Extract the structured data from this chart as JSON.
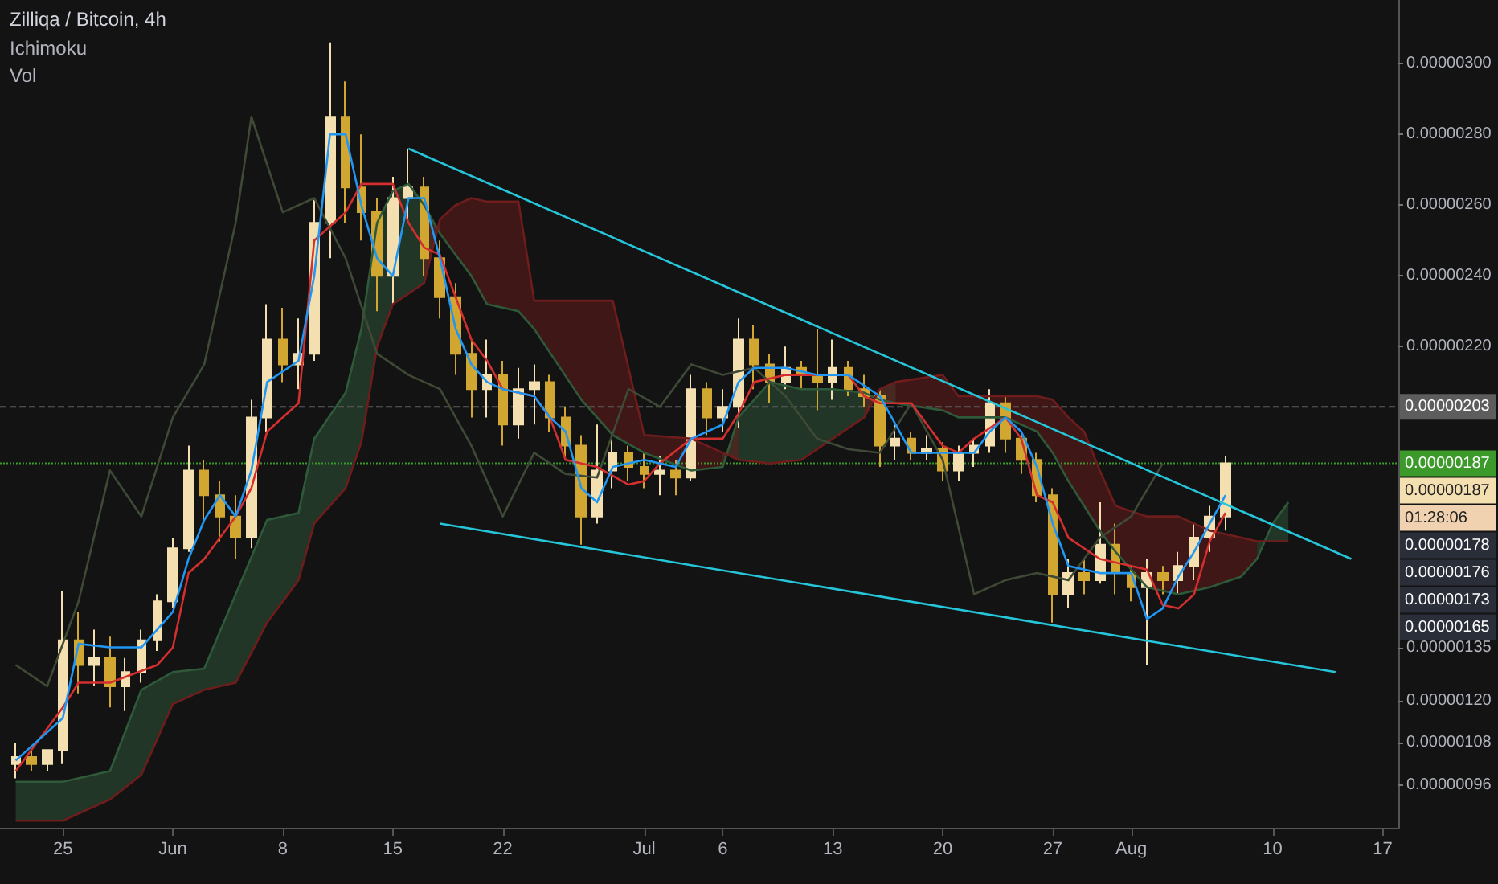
{
  "chart_data": {
    "type": "candlestick",
    "title": "Zilliqa / Bitcoin, 4h",
    "annotations": [
      "Ichimoku",
      "Vol",
      "01:28:06",
      "0.00000178",
      "0.00000176",
      "0.00000173",
      "0.00000165"
    ],
    "value_labels": [
      null,
      null,
      null,
      null,
      null,
      null,
      null,
      null,
      null,
      null,
      null,
      null,
      null,
      null,
      null,
      null,
      null,
      null,
      null,
      null,
      null,
      null,
      null,
      null,
      null,
      null,
      null,
      null,
      null,
      null,
      null,
      null,
      null,
      null,
      null,
      null,
      null,
      null,
      null,
      null,
      null,
      null,
      null,
      null,
      null,
      null,
      null,
      null,
      null,
      null,
      null,
      null,
      null,
      null,
      null,
      null,
      null,
      null,
      null,
      null,
      null,
      null,
      null,
      null,
      null,
      null,
      null,
      null,
      null,
      null,
      null,
      null,
      null,
      null,
      null,
      null,
      null,
      "0.00000187"
    ],
    "x": [
      "--05-22",
      "--05-23",
      "--05-24",
      "--05-25",
      "--05-26",
      "--05-27",
      "--05-28",
      "--05-29",
      "--05-30",
      "--05-31",
      "--06-01",
      "--06-02",
      "--06-03",
      "--06-04",
      "--06-05",
      "--06-06",
      "--06-07",
      "--06-08",
      "--06-09",
      "--06-10",
      "--06-11",
      "--06-12",
      "--06-13",
      "--06-14",
      "--06-15",
      "--06-16",
      "--06-17",
      "--06-18",
      "--06-19",
      "--06-20",
      "--06-21",
      "--06-22",
      "--06-23",
      "--06-24",
      "--06-25",
      "--06-26",
      "--06-27",
      "--06-28",
      "--06-29",
      "--06-30",
      "--07-01",
      "--07-02",
      "--07-03",
      "--07-04",
      "--07-05",
      "--07-06",
      "--07-07",
      "--07-08",
      "--07-09",
      "--07-10",
      "--07-11",
      "--07-12",
      "--07-13",
      "--07-14",
      "--07-15",
      "--07-16",
      "--07-17",
      "--07-18",
      "--07-19",
      "--07-20",
      "--07-21",
      "--07-22",
      "--07-23",
      "--07-24",
      "--07-25",
      "--07-26",
      "--07-27",
      "--07-28",
      "--07-29",
      "--07-30",
      "--07-31",
      "--08-01",
      "--08-02",
      "--08-03",
      "--08-04",
      "--08-05",
      "--08-06",
      "--08-07"
    ],
    "ohlc": [
      [
        1.02e-06,
        1.08e-06,
        9.8e-07,
        1.04e-06
      ],
      [
        1.04e-06,
        1.06e-06,
        1e-06,
        1.02e-06
      ],
      [
        1.02e-06,
        1.06e-06,
        1e-06,
        1.06e-06
      ],
      [
        1.06e-06,
        1.51e-06,
        1.02e-06,
        1.37e-06
      ],
      [
        1.37e-06,
        1.45e-06,
        1.22e-06,
        1.3e-06
      ],
      [
        1.3e-06,
        1.4e-06,
        1.24e-06,
        1.32e-06
      ],
      [
        1.32e-06,
        1.38e-06,
        1.18e-06,
        1.24e-06
      ],
      [
        1.24e-06,
        1.32e-06,
        1.17e-06,
        1.28e-06
      ],
      [
        1.28e-06,
        1.4e-06,
        1.25e-06,
        1.37e-06
      ],
      [
        1.37e-06,
        1.5e-06,
        1.34e-06,
        1.48e-06
      ],
      [
        1.48e-06,
        1.66e-06,
        1.46e-06,
        1.63e-06
      ],
      [
        1.63e-06,
        1.92e-06,
        1.62e-06,
        1.85e-06
      ],
      [
        1.85e-06,
        1.88e-06,
        1.7e-06,
        1.78e-06
      ],
      [
        1.78e-06,
        1.82e-06,
        1.65e-06,
        1.72e-06
      ],
      [
        1.72e-06,
        1.78e-06,
        1.6e-06,
        1.66e-06
      ],
      [
        1.66e-06,
        2.05e-06,
        1.63e-06,
        2e-06
      ],
      [
        2e-06,
        2.32e-06,
        1.96e-06,
        2.22e-06
      ],
      [
        2.22e-06,
        2.31e-06,
        2.1e-06,
        2.15e-06
      ],
      [
        2.15e-06,
        2.28e-06,
        2.08e-06,
        2.18e-06
      ],
      [
        2.18e-06,
        2.62e-06,
        2.16e-06,
        2.55e-06
      ],
      [
        2.55e-06,
        3.06e-06,
        2.45e-06,
        2.85e-06
      ],
      [
        2.85e-06,
        2.95e-06,
        2.55e-06,
        2.65e-06
      ],
      [
        2.65e-06,
        2.8e-06,
        2.5e-06,
        2.58e-06
      ],
      [
        2.58e-06,
        2.62e-06,
        2.3e-06,
        2.4e-06
      ],
      [
        2.4e-06,
        2.68e-06,
        2.32e-06,
        2.62e-06
      ],
      [
        2.62e-06,
        2.76e-06,
        2.55e-06,
        2.65e-06
      ],
      [
        2.65e-06,
        2.68e-06,
        2.4e-06,
        2.45e-06
      ],
      [
        2.45e-06,
        2.5e-06,
        2.28e-06,
        2.34e-06
      ],
      [
        2.34e-06,
        2.38e-06,
        2.12e-06,
        2.18e-06
      ],
      [
        2.18e-06,
        2.22e-06,
        2e-06,
        2.08e-06
      ],
      [
        2.08e-06,
        2.22e-06,
        2e-06,
        2.12e-06
      ],
      [
        2.12e-06,
        2.16e-06,
        1.92e-06,
        1.98e-06
      ],
      [
        1.98e-06,
        2.14e-06,
        1.94e-06,
        2.08e-06
      ],
      [
        2.08e-06,
        2.15e-06,
        1.98e-06,
        2.1e-06
      ],
      [
        2.1e-06,
        2.12e-06,
        1.96e-06,
        2e-06
      ],
      [
        2e-06,
        2.03e-06,
        1.88e-06,
        1.92e-06
      ],
      [
        1.92e-06,
        1.95e-06,
        1.64e-06,
        1.72e-06
      ],
      [
        1.72e-06,
        1.98e-06,
        1.7e-06,
        1.85e-06
      ],
      [
        1.85e-06,
        1.95e-06,
        1.8e-06,
        1.9e-06
      ],
      [
        1.9e-06,
        1.92e-06,
        1.82e-06,
        1.86e-06
      ],
      [
        1.86e-06,
        1.9e-06,
        1.8e-06,
        1.84e-06
      ],
      [
        1.84e-06,
        1.89e-06,
        1.78e-06,
        1.85e-06
      ],
      [
        1.85e-06,
        1.88e-06,
        1.78e-06,
        1.83e-06
      ],
      [
        1.83e-06,
        2.12e-06,
        1.82e-06,
        2.08e-06
      ],
      [
        2.08e-06,
        2.1e-06,
        1.95e-06,
        2e-06
      ],
      [
        2e-06,
        2.08e-06,
        1.96e-06,
        2.03e-06
      ],
      [
        2.03e-06,
        2.28e-06,
        1.97e-06,
        2.22e-06
      ],
      [
        2.22e-06,
        2.26e-06,
        2.08e-06,
        2.15e-06
      ],
      [
        2.15e-06,
        2.18e-06,
        2.04e-06,
        2.1e-06
      ],
      [
        2.1e-06,
        2.2e-06,
        2.08e-06,
        2.14e-06
      ],
      [
        2.14e-06,
        2.16e-06,
        2.08e-06,
        2.12e-06
      ],
      [
        2.12e-06,
        2.25e-06,
        2.02e-06,
        2.1e-06
      ],
      [
        2.1e-06,
        2.22e-06,
        2.05e-06,
        2.14e-06
      ],
      [
        2.14e-06,
        2.16e-06,
        2.06e-06,
        2.08e-06
      ],
      [
        2.08e-06,
        2.12e-06,
        2.03e-06,
        2.06e-06
      ],
      [
        2.06e-06,
        2.08e-06,
        1.86e-06,
        1.92e-06
      ],
      [
        1.92e-06,
        1.98e-06,
        1.88e-06,
        1.94e-06
      ],
      [
        1.94e-06,
        1.96e-06,
        1.88e-06,
        1.9e-06
      ],
      [
        1.9e-06,
        1.95e-06,
        1.88e-06,
        1.91e-06
      ],
      [
        1.91e-06,
        1.93e-06,
        1.82e-06,
        1.85e-06
      ],
      [
        1.85e-06,
        1.92e-06,
        1.82e-06,
        1.9e-06
      ],
      [
        1.9e-06,
        1.94e-06,
        1.86e-06,
        1.92e-06
      ],
      [
        1.92e-06,
        2.08e-06,
        1.9e-06,
        2.04e-06
      ],
      [
        2.04e-06,
        2.06e-06,
        1.9e-06,
        1.94e-06
      ],
      [
        1.94e-06,
        1.96e-06,
        1.84e-06,
        1.88e-06
      ],
      [
        1.88e-06,
        1.9e-06,
        1.76e-06,
        1.78e-06
      ],
      [
        1.78e-06,
        1.8e-06,
        1.42e-06,
        1.5e-06
      ],
      [
        1.5e-06,
        1.6e-06,
        1.46e-06,
        1.56e-06
      ],
      [
        1.56e-06,
        1.6e-06,
        1.5e-06,
        1.54e-06
      ],
      [
        1.54e-06,
        1.76e-06,
        1.53e-06,
        1.64e-06
      ],
      [
        1.64e-06,
        1.7e-06,
        1.5e-06,
        1.56e-06
      ],
      [
        1.56e-06,
        1.58e-06,
        1.48e-06,
        1.52e-06
      ],
      [
        1.52e-06,
        1.6e-06,
        1.3e-06,
        1.56e-06
      ],
      [
        1.56e-06,
        1.58e-06,
        1.5e-06,
        1.54e-06
      ],
      [
        1.54e-06,
        1.62e-06,
        1.5e-06,
        1.58e-06
      ],
      [
        1.58e-06,
        1.7e-06,
        1.54e-06,
        1.66e-06
      ],
      [
        1.66e-06,
        1.75e-06,
        1.62e-06,
        1.72e-06
      ],
      [
        1.72e-06,
        1.89e-06,
        1.68e-06,
        1.87e-06
      ]
    ],
    "colors": [
      "#f4dfb0",
      "#d1a631",
      "#f4dfb0",
      "#f4dfb0",
      "#d1a631",
      "#f4dfb0",
      "#d1a631",
      "#f4dfb0",
      "#f4dfb0",
      "#f4dfb0",
      "#f4dfb0",
      "#f4dfb0",
      "#d1a631",
      "#d1a631",
      "#d1a631",
      "#f4dfb0",
      "#f4dfb0",
      "#d1a631",
      "#f4dfb0",
      "#f4dfb0",
      "#f4dfb0",
      "#d1a631",
      "#d1a631",
      "#d1a631",
      "#f4dfb0",
      "#f4dfb0",
      "#d1a631",
      "#d1a631",
      "#d1a631",
      "#d1a631",
      "#f4dfb0",
      "#d1a631",
      "#f4dfb0",
      "#f4dfb0",
      "#d1a631",
      "#d1a631",
      "#d1a631",
      "#f4dfb0",
      "#f4dfb0",
      "#d1a631",
      "#d1a631",
      "#f4dfb0",
      "#d1a631",
      "#f4dfb0",
      "#d1a631",
      "#f4dfb0",
      "#f4dfb0",
      "#d1a631",
      "#d1a631",
      "#f4dfb0",
      "#d1a631",
      "#d1a631",
      "#f4dfb0",
      "#d1a631",
      "#d1a631",
      "#d1a631",
      "#f4dfb0",
      "#d1a631",
      "#f4dfb0",
      "#d1a631",
      "#f4dfb0",
      "#f4dfb0",
      "#f4dfb0",
      "#d1a631",
      "#d1a631",
      "#d1a631",
      "#d1a631",
      "#f4dfb0",
      "#d1a631",
      "#f4dfb0",
      "#d1a631",
      "#d1a631",
      "#f4dfb0",
      "#d1a631",
      "#f4dfb0",
      "#f4dfb0",
      "#f4dfb0",
      "#f4dfb0"
    ],
    "series": [
      {
        "type": "line",
        "color": "#2f5a3a",
        "values": [
          9.7e-07,
          9.7e-07,
          1e-06,
          1.23e-06,
          1.28e-06,
          1.29e-06,
          1.5e-06,
          1.71e-06,
          1.73e-06,
          1.94e-06,
          2.07e-06,
          2.25e-06,
          2.55e-06,
          2.64e-06,
          2.66e-06,
          2.6e-06,
          2.52e-06,
          2.46e-06,
          2.4e-06,
          2.32e-06,
          2.3e-06,
          2.25e-06,
          2.05e-06,
          1.95e-06,
          1.9e-06,
          1.85e-06,
          1.86e-06,
          2e-06,
          2.1e-06,
          2.08e-06,
          2.08e-06,
          2.07e-06,
          2.05e-06,
          2.04e-06,
          2.02e-06,
          2e-06,
          2e-06,
          1.96e-06,
          1.9e-06,
          1.82e-06,
          1.75e-06,
          1.68e-06,
          1.62e-06,
          1.52e-06,
          1.5e-06,
          1.52e-06,
          1.55e-06,
          1.6e-06,
          1.7e-06,
          1.76e-06
        ],
        "x": [
          "--05-22",
          "--05-25",
          "--05-28",
          "--05-30",
          "--06-01",
          "--06-03",
          "--06-05",
          "--06-07",
          "--06-09",
          "--06-10",
          "--06-12",
          "--06-13",
          "--06-14",
          "--06-15",
          "--06-16",
          "--06-17",
          "--06-18",
          "--06-19",
          "--06-20",
          "--06-21",
          "--06-23",
          "--06-24",
          "--06-27",
          "--06-29",
          "--07-01",
          "--07-04",
          "--07-06",
          "--07-07",
          "--07-09",
          "--07-11",
          "--07-13",
          "--07-15",
          "--07-16",
          "--07-17",
          "--07-20",
          "--07-21",
          "--07-24",
          "--07-26",
          "--07-27",
          "--07-28",
          "--07-29",
          "--07-30",
          "--07-31",
          "--08-02",
          "--08-04",
          "--08-06",
          "--08-08",
          "--08-09",
          "--08-10",
          "--08-11"
        ],
        "lower": [
          8.6e-07,
          8.6e-07,
          9.2e-07,
          9.9e-07,
          1.19e-06,
          1.23e-06,
          1.25e-06,
          1.42e-06,
          1.54e-06,
          1.7e-06,
          1.8e-06,
          1.93e-06,
          2.2e-06,
          2.32e-06,
          2.35e-06,
          2.38e-06,
          2.56e-06,
          null,
          null,
          null,
          null,
          null,
          null,
          null,
          null,
          null,
          1.9e-06,
          1.88e-06,
          1.87e-06,
          1.88e-06,
          1.94e-06,
          2e-06,
          2.08e-06,
          2.1e-06,
          null,
          null,
          null,
          null,
          null,
          null,
          null,
          null,
          null,
          null,
          null,
          null,
          null,
          1.65e-06,
          1.65e-06,
          1.65e-06
        ],
        "upper": [
          9.7e-07,
          9.7e-07,
          1e-06,
          1.23e-06,
          1.28e-06,
          1.29e-06,
          1.5e-06,
          1.71e-06,
          1.73e-06,
          1.94e-06,
          2.07e-06,
          2.25e-06,
          2.55e-06,
          2.64e-06,
          2.66e-06,
          2.6e-06,
          2.52e-06,
          null,
          null,
          null,
          null,
          null,
          null,
          null,
          null,
          null,
          1.86e-06,
          2e-06,
          2.1e-06,
          2.08e-06,
          2.08e-06,
          2.07e-06,
          2.05e-06,
          2.04e-06,
          null,
          null,
          null,
          null,
          null,
          null,
          null,
          null,
          null,
          null,
          null,
          null,
          null,
          1.6e-06,
          1.7e-06,
          1.76e-06
        ]
      },
      {
        "type": "line",
        "color": "#6e1c1c",
        "values": [
          8.6e-07,
          8.6e-07,
          9.2e-07,
          9.9e-07,
          1.19e-06,
          1.23e-06,
          1.25e-06,
          1.42e-06,
          1.54e-06,
          1.7e-06,
          1.8e-06,
          1.93e-06,
          2.2e-06,
          2.32e-06,
          2.35e-06,
          2.38e-06,
          2.56e-06,
          2.6e-06,
          2.62e-06,
          2.61e-06,
          2.61e-06,
          2.33e-06,
          2.33e-06,
          2.33e-06,
          1.95e-06,
          1.94e-06,
          1.9e-06,
          1.88e-06,
          1.87e-06,
          1.88e-06,
          1.94e-06,
          2e-06,
          2.08e-06,
          2.1e-06,
          2.12e-06,
          2.06e-06,
          2.06e-06,
          2.06e-06,
          2.05e-06,
          2e-06,
          1.96e-06,
          1.85e-06,
          1.75e-06,
          1.72e-06,
          1.72e-06,
          1.68e-06,
          1.66e-06,
          1.65e-06,
          1.65e-06,
          1.65e-06
        ],
        "x": [
          "--05-22",
          "--05-25",
          "--05-28",
          "--05-30",
          "--06-01",
          "--06-03",
          "--06-05",
          "--06-07",
          "--06-09",
          "--06-10",
          "--06-12",
          "--06-13",
          "--06-14",
          "--06-15",
          "--06-16",
          "--06-17",
          "--06-18",
          "--06-19",
          "--06-20",
          "--06-21",
          "--06-23",
          "--06-24",
          "--06-27",
          "--06-29",
          "--07-01",
          "--07-04",
          "--07-06",
          "--07-07",
          "--07-09",
          "--07-11",
          "--07-13",
          "--07-15",
          "--07-16",
          "--07-17",
          "--07-20",
          "--07-21",
          "--07-24",
          "--07-26",
          "--07-27",
          "--07-28",
          "--07-29",
          "--07-30",
          "--07-31",
          "--08-02",
          "--08-04",
          "--08-06",
          "--08-08",
          "--08-09",
          "--08-10",
          "--08-11"
        ],
        "lower": [
          null,
          null,
          null,
          null,
          null,
          null,
          null,
          null,
          null,
          null,
          null,
          null,
          null,
          null,
          null,
          2.6e-06,
          2.52e-06,
          2.46e-06,
          2.4e-06,
          2.32e-06,
          2.3e-06,
          2.25e-06,
          2.05e-06,
          1.95e-06,
          1.9e-06,
          1.85e-06,
          1.86e-06,
          2e-06,
          null,
          null,
          null,
          2.07e-06,
          2.05e-06,
          2.04e-06,
          2.02e-06,
          2e-06,
          2e-06,
          1.96e-06,
          1.9e-06,
          1.82e-06,
          1.75e-06,
          1.68e-06,
          1.62e-06,
          1.52e-06,
          1.5e-06,
          1.52e-06,
          1.55e-06,
          1.6e-06,
          null,
          null
        ],
        "upper": [
          null,
          null,
          null,
          null,
          null,
          null,
          null,
          null,
          null,
          null,
          null,
          null,
          null,
          null,
          null,
          2.38e-06,
          2.56e-06,
          2.6e-06,
          2.62e-06,
          2.61e-06,
          2.61e-06,
          2.33e-06,
          2.33e-06,
          2.33e-06,
          1.95e-06,
          1.94e-06,
          1.9e-06,
          1.88e-06,
          null,
          null,
          null,
          2e-06,
          2.08e-06,
          2.1e-06,
          2.12e-06,
          2.06e-06,
          2.06e-06,
          2.06e-06,
          2.05e-06,
          2e-06,
          1.96e-06,
          1.85e-06,
          1.75e-06,
          1.72e-06,
          1.72e-06,
          1.68e-06,
          1.66e-06,
          1.65e-06,
          null,
          null
        ]
      },
      {
        "type": "line",
        "color": "#3e4a36",
        "x": [
          "--05-22",
          "--05-24",
          "--05-26",
          "--05-28",
          "--05-30",
          "--06-01",
          "--06-03",
          "--06-05",
          "--06-06",
          "--06-08",
          "--06-10",
          "--06-12",
          "--06-14",
          "--06-16",
          "--06-18",
          "--06-20",
          "--06-22",
          "--06-24",
          "--06-26",
          "--06-28",
          "--06-30",
          "--07-02",
          "--07-04",
          "--07-06",
          "--07-08",
          "--07-10",
          "--07-12",
          "--07-14",
          "--07-16",
          "--07-18",
          "--07-20",
          "--07-22",
          "--07-24",
          "--07-26",
          "--07-28",
          "--07-30",
          "--08-01",
          "--08-03"
        ],
        "values": [
          1.3e-06,
          1.24e-06,
          1.48e-06,
          1.85e-06,
          1.72e-06,
          2e-06,
          2.15e-06,
          2.55e-06,
          2.85e-06,
          2.58e-06,
          2.62e-06,
          2.45e-06,
          2.18e-06,
          2.12e-06,
          2.08e-06,
          1.92e-06,
          1.72e-06,
          1.9e-06,
          1.84e-06,
          1.83e-06,
          2.08e-06,
          2.03e-06,
          2.15e-06,
          2.12e-06,
          2.14e-06,
          2.06e-06,
          1.94e-06,
          1.91e-06,
          1.9e-06,
          2.04e-06,
          1.88e-06,
          1.5e-06,
          1.54e-06,
          1.56e-06,
          1.54e-06,
          1.66e-06,
          1.72e-06,
          1.87e-06
        ]
      },
      {
        "type": "line",
        "color": "#d32f2f",
        "x": [
          "--05-22",
          "--05-25",
          "--05-26",
          "--05-28",
          "--05-31",
          "--06-01",
          "--06-02",
          "--06-03",
          "--06-05",
          "--06-06",
          "--06-07",
          "--06-09",
          "--06-10",
          "--06-12",
          "--06-13",
          "--06-15",
          "--06-16",
          "--06-17",
          "--06-18",
          "--06-19",
          "--06-20",
          "--06-21",
          "--06-22",
          "--06-24",
          "--06-25",
          "--06-26",
          "--06-28",
          "--06-30",
          "--07-01",
          "--07-02",
          "--07-04",
          "--07-06",
          "--07-07",
          "--07-08",
          "--07-10",
          "--07-14",
          "--07-15",
          "--07-16",
          "--07-18",
          "--07-19",
          "--07-20",
          "--07-21",
          "--07-22",
          "--07-24",
          "--07-25",
          "--07-26",
          "--07-27",
          "--07-28",
          "--07-30",
          "--08-01",
          "--08-02",
          "--08-03",
          "--08-04",
          "--08-05",
          "--08-06",
          "--08-07"
        ],
        "values": [
          1e-06,
          1.18e-06,
          1.25e-06,
          1.25e-06,
          1.3e-06,
          1.35e-06,
          1.56e-06,
          1.6e-06,
          1.72e-06,
          1.8e-06,
          1.96e-06,
          2.04e-06,
          2.5e-06,
          2.58e-06,
          2.66e-06,
          2.66e-06,
          2.55e-06,
          2.48e-06,
          2.46e-06,
          2.34e-06,
          2.22e-06,
          2.16e-06,
          2.08e-06,
          2.06e-06,
          2e-06,
          1.88e-06,
          1.86e-06,
          1.81e-06,
          1.82e-06,
          1.87e-06,
          1.94e-06,
          1.94e-06,
          2.01e-06,
          2.1e-06,
          2.12e-06,
          2.12e-06,
          2.06e-06,
          2.04e-06,
          2.04e-06,
          1.98e-06,
          1.92e-06,
          1.9e-06,
          1.94e-06,
          2e-06,
          1.94e-06,
          1.78e-06,
          1.76e-06,
          1.66e-06,
          1.6e-06,
          1.58e-06,
          1.57e-06,
          1.47e-06,
          1.46e-06,
          1.5e-06,
          1.65e-06,
          1.73e-06
        ]
      },
      {
        "type": "line",
        "color": "#2196f3",
        "x": [
          "--05-22",
          "--05-25",
          "--05-26",
          "--05-28",
          "--05-30",
          "--06-01",
          "--06-02",
          "--06-03",
          "--06-04",
          "--06-05",
          "--06-06",
          "--06-07",
          "--06-09",
          "--06-10",
          "--06-11",
          "--06-12",
          "--06-13",
          "--06-14",
          "--06-15",
          "--06-16",
          "--06-17",
          "--06-18",
          "--06-19",
          "--06-20",
          "--06-21",
          "--06-22",
          "--06-24",
          "--06-25",
          "--06-26",
          "--06-27",
          "--06-28",
          "--06-29",
          "--07-01",
          "--07-03",
          "--07-04",
          "--07-06",
          "--07-07",
          "--07-08",
          "--07-10",
          "--07-12",
          "--07-14",
          "--07-16",
          "--07-18",
          "--07-20",
          "--07-22",
          "--07-23",
          "--07-24",
          "--07-25",
          "--07-26",
          "--07-27",
          "--07-28",
          "--07-30",
          "--08-01",
          "--08-02",
          "--08-03",
          "--08-04",
          "--08-05",
          "--08-06",
          "--08-07"
        ],
        "values": [
          1.03e-06,
          1.15e-06,
          1.36e-06,
          1.35e-06,
          1.35e-06,
          1.45e-06,
          1.6e-06,
          1.71e-06,
          1.78e-06,
          1.72e-06,
          1.85e-06,
          2.1e-06,
          2.16e-06,
          2.4e-06,
          2.8e-06,
          2.8e-06,
          2.6e-06,
          2.45e-06,
          2.4e-06,
          2.62e-06,
          2.62e-06,
          2.45e-06,
          2.25e-06,
          2.15e-06,
          2.1e-06,
          2.08e-06,
          2.06e-06,
          2e-06,
          1.96e-06,
          1.8e-06,
          1.76e-06,
          1.86e-06,
          1.88e-06,
          1.86e-06,
          1.94e-06,
          1.98e-06,
          2.1e-06,
          2.14e-06,
          2.14e-06,
          2.12e-06,
          2.12e-06,
          2.06e-06,
          1.9e-06,
          1.9e-06,
          1.9e-06,
          1.96e-06,
          2e-06,
          1.96e-06,
          1.86e-06,
          1.7e-06,
          1.58e-06,
          1.56e-06,
          1.56e-06,
          1.43e-06,
          1.46e-06,
          1.55e-06,
          1.62e-06,
          1.7e-06,
          1.78e-06
        ]
      },
      {
        "type": "line",
        "color": "#26c6da",
        "x": [
          "--06-16",
          "--08-15"
        ],
        "values": [
          2.76e-06,
          1.6e-06
        ]
      },
      {
        "type": "line",
        "color": "#26c6da",
        "x": [
          "--06-18",
          "--08-14"
        ],
        "values": [
          1.7e-06,
          1.28e-06
        ]
      }
    ],
    "ref_lines": [
      {
        "axis": "y",
        "value": 2.03e-06,
        "label": "0.00000203",
        "color": "#5d5d5d",
        "line_style": "dashed"
      },
      {
        "axis": "y",
        "value": 1.87e-06,
        "label": "0.00000187",
        "color": "#3c9a2a",
        "line_style": "dotted"
      }
    ],
    "xlim": [
      "--05-21",
      "--08-18"
    ],
    "xticks": [
      {
        "value": "--05-25",
        "label": "25"
      },
      {
        "value": "--06-01",
        "label": "Jun"
      },
      {
        "value": "--06-08",
        "label": "8"
      },
      {
        "value": "--06-15",
        "label": "15"
      },
      {
        "value": "--06-22",
        "label": "22"
      },
      {
        "value": "--07-01",
        "label": "Jul"
      },
      {
        "value": "--07-06",
        "label": "6"
      },
      {
        "value": "--07-13",
        "label": "13"
      },
      {
        "value": "--07-20",
        "label": "20"
      },
      {
        "value": "--07-27",
        "label": "27"
      },
      {
        "value": "--08-01",
        "label": "Aug"
      },
      {
        "value": "--08-10",
        "label": "10"
      },
      {
        "value": "--08-17",
        "label": "17"
      }
    ],
    "ylim": [
      8.4e-07,
      3.18e-06
    ],
    "yticks": [
      {
        "value": 9.6e-07,
        "label": "0.00000096"
      },
      {
        "value": 1.08e-06,
        "label": "0.00000108"
      },
      {
        "value": 1.2e-06,
        "label": "0.00000120"
      },
      {
        "value": 1.35e-06,
        "label": "0.00000135"
      },
      {
        "value": 2.2e-06,
        "label": "0.00000220"
      },
      {
        "value": 2.4e-06,
        "label": "0.00000240"
      },
      {
        "value": 2.6e-06,
        "label": "0.00000260"
      },
      {
        "value": 2.8e-06,
        "label": "0.00000280"
      },
      {
        "value": 3e-06,
        "label": "0.00000300"
      }
    ],
    "grid": false
  }
}
